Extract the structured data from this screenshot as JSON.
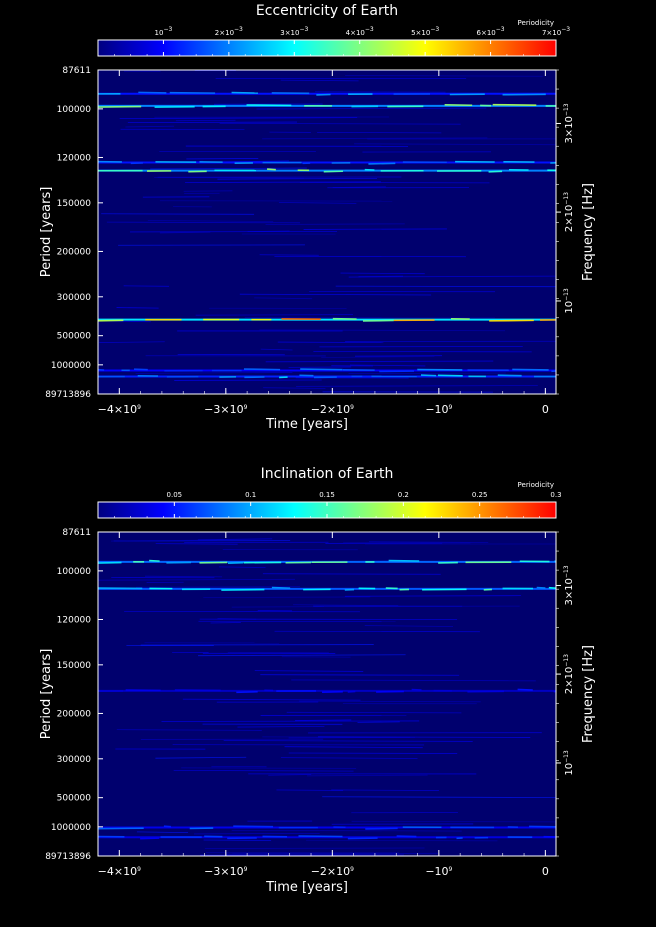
{
  "colors": {
    "background": "#000000",
    "plot_background": "#00006e",
    "colormap": [
      "#000080",
      "#0000ff",
      "#0080ff",
      "#00ffff",
      "#80ff80",
      "#ffff00",
      "#ff8000",
      "#ff0000"
    ]
  },
  "chart_data": [
    {
      "type": "heatmap",
      "title": "Eccentricity of Earth",
      "xlabel": "Time [years]",
      "ylabel": "Period [years]",
      "ylabel_right": "Frequency [Hz]",
      "colorbar_label": "Periodicity",
      "colorbar_range": [
        0,
        0.007
      ],
      "colorbar_ticks": [
        {
          "v": 0.001,
          "m": "10",
          "e": "−3"
        },
        {
          "v": 0.002,
          "m": "2×10",
          "e": "−3"
        },
        {
          "v": 0.003,
          "m": "3×10",
          "e": "−3"
        },
        {
          "v": 0.004,
          "m": "4×10",
          "e": "−3"
        },
        {
          "v": 0.005,
          "m": "5×10",
          "e": "−3"
        },
        {
          "v": 0.006,
          "m": "6×10",
          "e": "−3"
        },
        {
          "v": 0.007,
          "m": "7×10",
          "e": "−3"
        }
      ],
      "xlim": [
        -4200000000.0,
        100000000.0
      ],
      "x_ticks": [
        {
          "v": -4000000000.0,
          "m": "−4×10",
          "e": "9"
        },
        {
          "v": -3000000000.0,
          "m": "−3×10",
          "e": "9"
        },
        {
          "v": -2000000000.0,
          "m": "−2×10",
          "e": "9"
        },
        {
          "v": -1000000000.0,
          "m": "−10",
          "e": "9"
        },
        {
          "v": 0,
          "m": "0",
          "e": ""
        }
      ],
      "y_ticks": [
        87611,
        100000,
        120000,
        150000,
        200000,
        300000,
        500000,
        1000000,
        89713896
      ],
      "y_tick_labels": [
        "87611",
        "100000",
        "120000",
        "150000",
        "200000",
        "300000",
        "500000",
        "1000000",
        "89713896"
      ],
      "freq_ticks": [
        {
          "v": 1e-13,
          "m": "10",
          "e": "−13"
        },
        {
          "v": 2e-13,
          "m": "2×10",
          "e": "−13"
        },
        {
          "v": 3e-13,
          "m": "3×10",
          "e": "−13"
        }
      ],
      "bands": [
        {
          "period": 95000,
          "intensity": 0.0025
        },
        {
          "period": 99000,
          "intensity": 0.0045
        },
        {
          "period": 123000,
          "intensity": 0.0025
        },
        {
          "period": 128000,
          "intensity": 0.0045
        },
        {
          "period": 405000,
          "intensity": 0.0062
        },
        {
          "period": 2400000,
          "intensity": 0.0022
        },
        {
          "period": 6000000,
          "intensity": 0.0028
        }
      ]
    },
    {
      "type": "heatmap",
      "title": "Inclination of Earth",
      "xlabel": "Time [years]",
      "ylabel": "Period [years]",
      "ylabel_right": "Frequency [Hz]",
      "colorbar_label": "Periodicity",
      "colorbar_range": [
        0,
        0.3
      ],
      "colorbar_ticks": [
        {
          "v": 0.05,
          "m": "0.05",
          "e": ""
        },
        {
          "v": 0.1,
          "m": "0.1",
          "e": ""
        },
        {
          "v": 0.15,
          "m": "0.15",
          "e": ""
        },
        {
          "v": 0.2,
          "m": "0.2",
          "e": ""
        },
        {
          "v": 0.25,
          "m": "0.25",
          "e": ""
        },
        {
          "v": 0.3,
          "m": "0.3",
          "e": ""
        }
      ],
      "xlim": [
        -4200000000.0,
        100000000.0
      ],
      "x_ticks": [
        {
          "v": -4000000000.0,
          "m": "−4×10",
          "e": "9"
        },
        {
          "v": -3000000000.0,
          "m": "−3×10",
          "e": "9"
        },
        {
          "v": -2000000000.0,
          "m": "−2×10",
          "e": "9"
        },
        {
          "v": -1000000000.0,
          "m": "−10",
          "e": "9"
        },
        {
          "v": 0,
          "m": "0",
          "e": ""
        }
      ],
      "y_ticks": [
        87611,
        100000,
        120000,
        150000,
        200000,
        300000,
        500000,
        1000000,
        89713896
      ],
      "y_tick_labels": [
        "87611",
        "100000",
        "120000",
        "150000",
        "200000",
        "300000",
        "500000",
        "1000000",
        "89713896"
      ],
      "freq_ticks": [
        {
          "v": 1e-13,
          "m": "10",
          "e": "−13"
        },
        {
          "v": 2e-13,
          "m": "2×10",
          "e": "−13"
        },
        {
          "v": 3e-13,
          "m": "3×10",
          "e": "−13"
        }
      ],
      "bands": [
        {
          "period": 97000,
          "intensity": 0.17
        },
        {
          "period": 107000,
          "intensity": 0.16
        },
        {
          "period": 175000,
          "intensity": 0.05
        },
        {
          "period": 1100000,
          "intensity": 0.08
        },
        {
          "period": 5000000,
          "intensity": 0.07
        }
      ]
    }
  ]
}
